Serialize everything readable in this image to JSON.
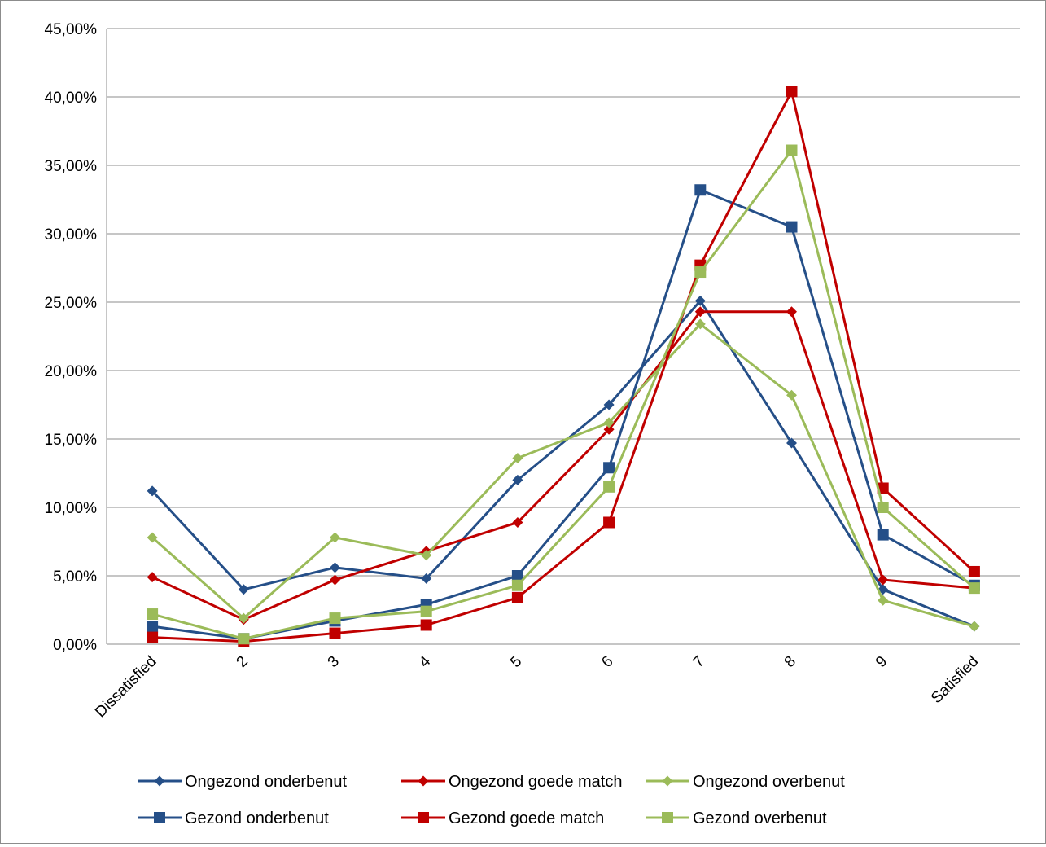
{
  "chart_data": {
    "type": "line",
    "title": "",
    "xlabel": "",
    "ylabel": "",
    "categories": [
      "Dissatisfied",
      "2",
      "3",
      "4",
      "5",
      "6",
      "7",
      "8",
      "9",
      "Satisfied"
    ],
    "ylim": [
      0,
      45
    ],
    "yticks": [
      "0,00%",
      "5,00%",
      "10,00%",
      "15,00%",
      "20,00%",
      "25,00%",
      "30,00%",
      "35,00%",
      "40,00%",
      "45,00%"
    ],
    "grid": true,
    "legend_position": "bottom",
    "series": [
      {
        "name": "Ongezond onderbenut",
        "color": "#254f88",
        "marker": "diamond",
        "values": [
          11.2,
          4.0,
          5.6,
          4.8,
          12.0,
          17.5,
          25.1,
          14.7,
          4.0,
          1.3
        ]
      },
      {
        "name": "Ongezond goede match",
        "color": "#c00000",
        "marker": "diamond",
        "values": [
          4.9,
          1.8,
          4.7,
          6.8,
          8.9,
          15.7,
          24.3,
          24.3,
          4.7,
          4.1
        ]
      },
      {
        "name": "Ongezond overbenut",
        "color": "#9bbb59",
        "marker": "diamond",
        "values": [
          7.8,
          1.9,
          7.8,
          6.5,
          13.6,
          16.2,
          23.4,
          18.2,
          3.2,
          1.3
        ]
      },
      {
        "name": "Gezond onderbenut",
        "color": "#254f88",
        "marker": "square",
        "values": [
          1.3,
          0.4,
          1.7,
          2.9,
          5.0,
          12.9,
          33.2,
          30.5,
          8.0,
          4.3
        ]
      },
      {
        "name": "Gezond goede match",
        "color": "#c00000",
        "marker": "square",
        "values": [
          0.5,
          0.2,
          0.8,
          1.4,
          3.4,
          8.9,
          27.7,
          40.4,
          11.4,
          5.3
        ]
      },
      {
        "name": "Gezond overbenut",
        "color": "#9bbb59",
        "marker": "square",
        "values": [
          2.2,
          0.4,
          1.9,
          2.4,
          4.3,
          11.5,
          27.2,
          36.1,
          10.0,
          4.1
        ]
      }
    ]
  }
}
